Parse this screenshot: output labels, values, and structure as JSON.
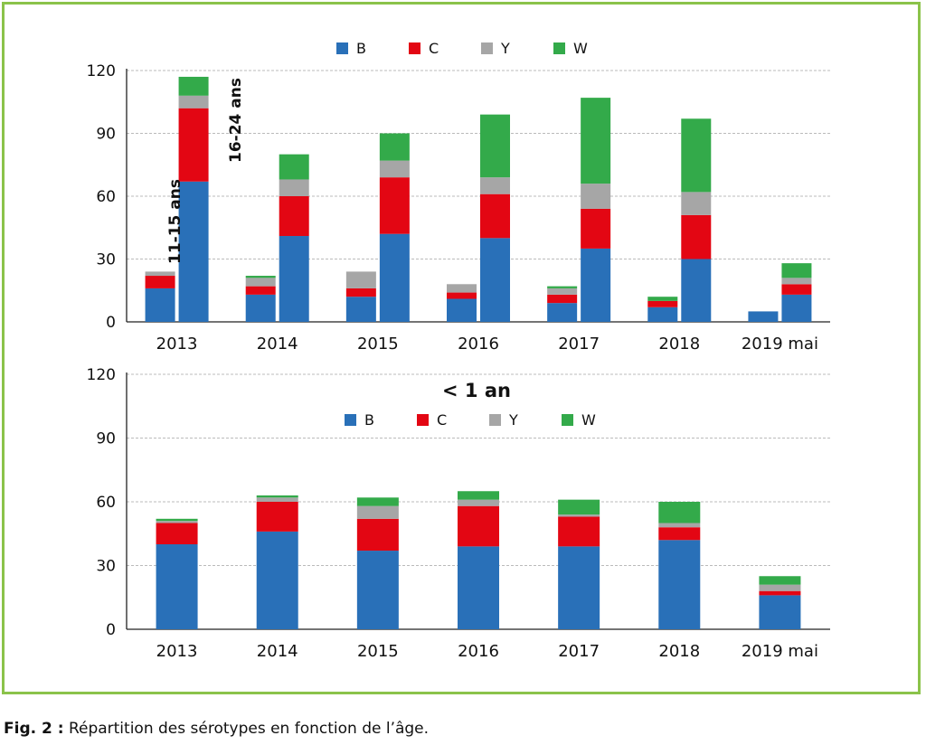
{
  "colors": {
    "B": "#2970b8",
    "C": "#e30613",
    "Y": "#a6a6a6",
    "W": "#33aa4a",
    "frame": "#8bc34a"
  },
  "caption": {
    "label": "Fig. 2 :",
    "text": "Répartition des sérotypes en fonction de l’âge."
  },
  "chart_data": [
    {
      "type": "bar",
      "stacked": true,
      "title": "",
      "legend": [
        "B",
        "C",
        "Y",
        "W"
      ],
      "legend_position": "top",
      "categories": [
        "2013",
        "2014",
        "2015",
        "2016",
        "2017",
        "2018",
        "2019 mai"
      ],
      "yticks": [
        0,
        30,
        60,
        90,
        120
      ],
      "ylim": [
        0,
        120
      ],
      "grid": "horizontal",
      "annotations": [
        "11-15 ans",
        "16-24 ans"
      ],
      "groups": [
        {
          "name": "11-15 ans",
          "series": [
            {
              "name": "B",
              "values": [
                16,
                13,
                12,
                11,
                9,
                7,
                5
              ]
            },
            {
              "name": "C",
              "values": [
                6,
                4,
                4,
                3,
                4,
                3,
                0
              ]
            },
            {
              "name": "Y",
              "values": [
                2,
                4,
                8,
                4,
                3,
                0,
                0
              ]
            },
            {
              "name": "W",
              "values": [
                0,
                1,
                0,
                0,
                1,
                2,
                0
              ]
            }
          ]
        },
        {
          "name": "16-24 ans",
          "series": [
            {
              "name": "B",
              "values": [
                67,
                41,
                42,
                40,
                35,
                30,
                13
              ]
            },
            {
              "name": "C",
              "values": [
                35,
                19,
                27,
                21,
                19,
                21,
                5
              ]
            },
            {
              "name": "Y",
              "values": [
                6,
                8,
                8,
                8,
                12,
                11,
                3
              ]
            },
            {
              "name": "W",
              "values": [
                9,
                12,
                13,
                30,
                41,
                35,
                7
              ]
            }
          ]
        }
      ]
    },
    {
      "type": "bar",
      "stacked": true,
      "title": "< 1 an",
      "legend": [
        "B",
        "C",
        "Y",
        "W"
      ],
      "legend_position": "top",
      "categories": [
        "2013",
        "2014",
        "2015",
        "2016",
        "2017",
        "2018",
        "2019 mai"
      ],
      "yticks": [
        0,
        30,
        60,
        90,
        120
      ],
      "ylim": [
        0,
        120
      ],
      "grid": "horizontal",
      "series": [
        {
          "name": "B",
          "values": [
            40,
            46,
            37,
            39,
            39,
            42,
            16
          ]
        },
        {
          "name": "C",
          "values": [
            10,
            14,
            15,
            19,
            14,
            6,
            2
          ]
        },
        {
          "name": "Y",
          "values": [
            1,
            2,
            6,
            3,
            1,
            2,
            3
          ]
        },
        {
          "name": "W",
          "values": [
            1,
            1,
            4,
            4,
            7,
            10,
            4
          ]
        }
      ]
    }
  ]
}
